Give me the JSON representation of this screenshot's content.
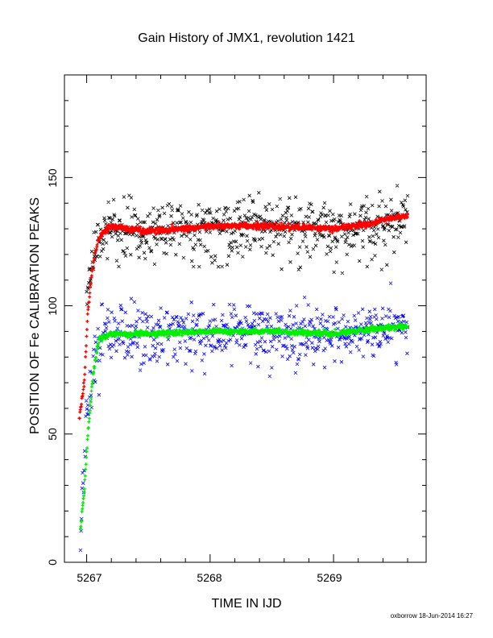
{
  "chart_data": {
    "type": "scatter",
    "title": "Gain History of JMX1, revolution 1421",
    "xlabel": "TIME IN IJD",
    "ylabel": "POSITION OF Fe CALIBRATION PEAKS",
    "xlim": [
      5266.82,
      5269.75
    ],
    "ylim": [
      0,
      190
    ],
    "x_ticks": [
      "5267",
      "5268",
      "5269"
    ],
    "y_ticks": [
      "0",
      "50",
      "100",
      "150"
    ],
    "grid": false,
    "legend": "none",
    "series": [
      {
        "marker": "x",
        "color": "#000000",
        "trend": [
          [
            5267.0,
            100
          ],
          [
            5267.07,
            123
          ],
          [
            5267.15,
            131
          ],
          [
            5267.5,
            130
          ],
          [
            5268.0,
            131
          ],
          [
            5268.5,
            131
          ],
          [
            5269.0,
            130
          ],
          [
            5269.3,
            132
          ],
          [
            5269.5,
            134
          ],
          [
            5269.6,
            135
          ]
        ],
        "scatter": 5
      },
      {
        "marker": "+",
        "color": "#ff0000",
        "trend": [
          [
            5266.94,
            56
          ],
          [
            5266.98,
            70
          ],
          [
            5267.01,
            98
          ],
          [
            5267.05,
            116
          ],
          [
            5267.1,
            127
          ],
          [
            5267.2,
            131
          ],
          [
            5267.5,
            129
          ],
          [
            5268.0,
            131
          ],
          [
            5268.5,
            131
          ],
          [
            5269.0,
            130
          ],
          [
            5269.3,
            132
          ],
          [
            5269.45,
            134
          ],
          [
            5269.6,
            135
          ]
        ],
        "scatter": 0.6
      },
      {
        "marker": "x",
        "color": "#0000ff",
        "trend": [
          [
            5266.95,
            10
          ],
          [
            5266.97,
            30
          ],
          [
            5267.0,
            55
          ],
          [
            5267.05,
            75
          ],
          [
            5267.12,
            89
          ],
          [
            5267.5,
            88
          ],
          [
            5268.0,
            90
          ],
          [
            5268.5,
            90
          ],
          [
            5269.0,
            89
          ],
          [
            5269.3,
            91
          ],
          [
            5269.6,
            93
          ]
        ],
        "scatter": 5
      },
      {
        "marker": "+",
        "color": "#00ee00",
        "trend": [
          [
            5266.95,
            13
          ],
          [
            5266.98,
            28
          ],
          [
            5267.01,
            50
          ],
          [
            5267.05,
            73
          ],
          [
            5267.1,
            87
          ],
          [
            5267.2,
            89
          ],
          [
            5267.5,
            89
          ],
          [
            5268.0,
            90
          ],
          [
            5268.5,
            90
          ],
          [
            5269.0,
            89
          ],
          [
            5269.3,
            91
          ],
          [
            5269.6,
            92
          ]
        ],
        "scatter": 0.5
      }
    ]
  },
  "footer": "oxborrow 18-Jun-2014 16:27"
}
